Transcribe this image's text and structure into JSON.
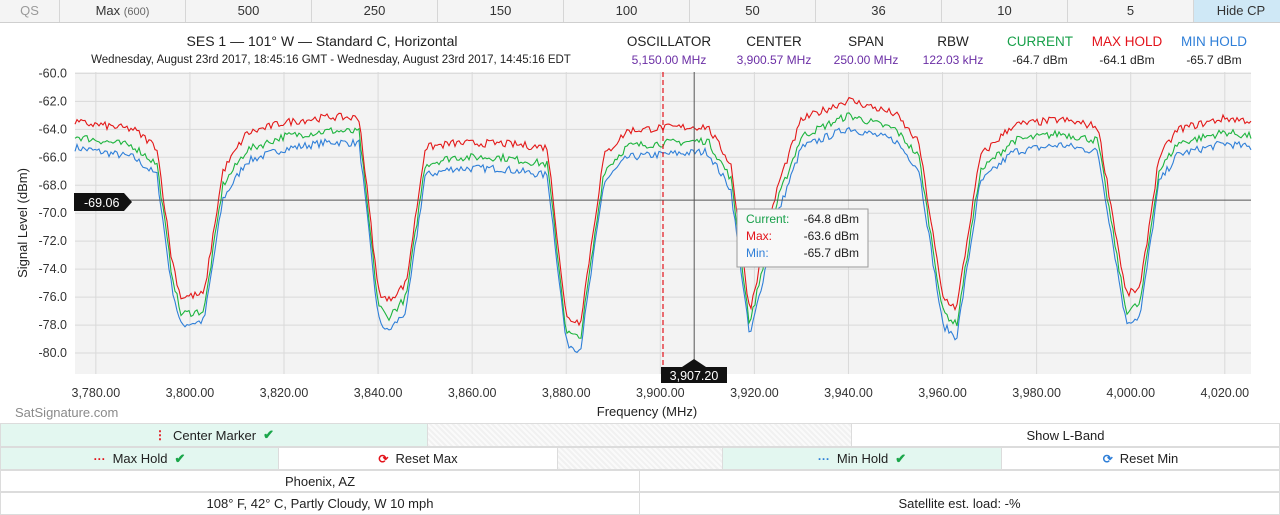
{
  "toolbar": {
    "qs": "QS",
    "max_label": "Max",
    "max_value": "(600)",
    "rates": [
      "500",
      "250",
      "150",
      "100",
      "50",
      "36",
      "10",
      "5"
    ],
    "hide_cp": "Hide CP"
  },
  "header": {
    "title": "SES 1 — 101° W — Standard C, Horizontal",
    "subtitle": "Wednesday, August 23rd 2017, 18:45:16 GMT - Wednesday, August 23rd 2017, 14:45:16 EDT",
    "stats": [
      {
        "label": "OSCILLATOR",
        "value": "5,150.00 MHz",
        "label_color": "#222222",
        "value_color": "#6b2ea5"
      },
      {
        "label": "CENTER",
        "value": "3,900.57 MHz",
        "label_color": "#222222",
        "value_color": "#6b2ea5"
      },
      {
        "label": "SPAN",
        "value": "250.00 MHz",
        "label_color": "#222222",
        "value_color": "#6b2ea5"
      },
      {
        "label": "RBW",
        "value": "122.03 kHz",
        "label_color": "#222222",
        "value_color": "#6b2ea5"
      },
      {
        "label": "CURRENT",
        "value": "-64.7 dBm",
        "label_color": "#18a04a",
        "value_color": "#222222"
      },
      {
        "label": "MAX HOLD",
        "value": "-64.1 dBm",
        "label_color": "#e3131b",
        "value_color": "#222222"
      },
      {
        "label": "MIN HOLD",
        "value": "-65.7 dBm",
        "label_color": "#2f7fd8",
        "value_color": "#222222"
      }
    ]
  },
  "chart_data": {
    "type": "line",
    "xlabel": "Frequency (MHz)",
    "ylabel": "Signal Level (dBm)",
    "xlim": [
      3775.57,
      4025.57
    ],
    "ylim": [
      -81.5,
      -59.9
    ],
    "xticks": [
      "3,780.00",
      "3,800.00",
      "3,820.00",
      "3,840.00",
      "3,860.00",
      "3,880.00",
      "3,900.00",
      "3,920.00",
      "3,940.00",
      "3,960.00",
      "3,980.00",
      "4,000.00",
      "4,020.00"
    ],
    "yticks": [
      "-60.0",
      "-62.0",
      "-64.0",
      "-66.0",
      "-68.0",
      "-70.0",
      "-72.0",
      "-74.0",
      "-76.0",
      "-78.0",
      "-80.0"
    ],
    "grid": true,
    "series": [
      {
        "name": "Current",
        "color": "#1db43e",
        "x": [
          3775.6,
          3781,
          3788,
          3793,
          3796,
          3798,
          3803,
          3807,
          3812,
          3820,
          3830,
          3836,
          3840,
          3842,
          3846,
          3850,
          3856,
          3866,
          3876,
          3880,
          3883,
          3888,
          3893,
          3900,
          3910,
          3915,
          3919,
          3925,
          3930,
          3940,
          3950,
          3955,
          3960,
          3963,
          3968,
          3975,
          3985,
          3993,
          3999,
          4002,
          4006,
          4010,
          4020,
          4025.6
        ],
        "y": [
          -64.5,
          -64.8,
          -65.2,
          -66.5,
          -74.0,
          -77.2,
          -77.0,
          -68.0,
          -65.5,
          -64.5,
          -64.1,
          -64.2,
          -76.5,
          -77.5,
          -76.0,
          -66.5,
          -66.0,
          -66.0,
          -66.5,
          -78.5,
          -79.0,
          -67.0,
          -65.2,
          -65.0,
          -64.8,
          -67.5,
          -78.0,
          -69.0,
          -64.5,
          -63.0,
          -64.0,
          -66.0,
          -77.0,
          -78.0,
          -67.0,
          -64.8,
          -64.3,
          -64.8,
          -77.0,
          -76.5,
          -67.0,
          -65.0,
          -64.2,
          -64.5
        ]
      },
      {
        "name": "Max",
        "color": "#e31818",
        "x": [
          3775.6,
          3781,
          3788,
          3793,
          3796,
          3798,
          3803,
          3807,
          3812,
          3820,
          3830,
          3836,
          3840,
          3842,
          3846,
          3850,
          3856,
          3866,
          3876,
          3880,
          3883,
          3888,
          3893,
          3900,
          3910,
          3915,
          3919,
          3925,
          3930,
          3940,
          3950,
          3955,
          3960,
          3963,
          3968,
          3975,
          3985,
          3993,
          3999,
          4002,
          4006,
          4010,
          4020,
          4025.6
        ],
        "y": [
          -63.5,
          -63.7,
          -64.0,
          -65.3,
          -73.0,
          -76.0,
          -75.8,
          -67.0,
          -64.3,
          -63.5,
          -63.1,
          -63.2,
          -75.5,
          -76.3,
          -75.0,
          -65.3,
          -65.0,
          -65.0,
          -65.3,
          -77.5,
          -77.8,
          -65.9,
          -64.1,
          -63.9,
          -63.8,
          -66.5,
          -77.0,
          -68.0,
          -63.3,
          -61.9,
          -62.9,
          -65.0,
          -76.0,
          -76.8,
          -65.9,
          -63.7,
          -63.3,
          -63.8,
          -75.8,
          -75.4,
          -66.0,
          -64.0,
          -63.2,
          -63.4
        ]
      },
      {
        "name": "Min",
        "color": "#2f7fd8",
        "x": [
          3775.6,
          3781,
          3788,
          3793,
          3796,
          3798,
          3803,
          3807,
          3812,
          3820,
          3830,
          3836,
          3840,
          3842,
          3846,
          3850,
          3856,
          3866,
          3876,
          3880,
          3883,
          3888,
          3893,
          3900,
          3910,
          3915,
          3919,
          3925,
          3930,
          3940,
          3950,
          3955,
          3960,
          3963,
          3968,
          3975,
          3985,
          3993,
          3999,
          4002,
          4006,
          4010,
          4020,
          4025.6
        ],
        "y": [
          -65.3,
          -65.6,
          -66.0,
          -67.3,
          -75.0,
          -78.0,
          -77.7,
          -69.0,
          -66.3,
          -65.4,
          -64.9,
          -65.0,
          -77.5,
          -78.5,
          -77.0,
          -67.3,
          -66.8,
          -66.8,
          -67.3,
          -79.3,
          -79.8,
          -67.8,
          -66.0,
          -65.8,
          -65.6,
          -68.3,
          -78.9,
          -70.0,
          -65.3,
          -63.9,
          -64.8,
          -66.9,
          -78.0,
          -78.9,
          -67.8,
          -65.6,
          -65.1,
          -65.6,
          -77.8,
          -77.4,
          -67.8,
          -65.8,
          -65.0,
          -65.3
        ]
      }
    ],
    "center_marker_x": 3900.57,
    "cursor_x": 3907.2,
    "cursor_x_label": "3,907.20",
    "cursor_y": -69.06,
    "cursor_y_label": "-69.06",
    "tooltip": [
      {
        "label": "Current:",
        "value": "-64.8 dBm",
        "color": "#18a04a"
      },
      {
        "label": "Max:",
        "value": "-63.6 dBm",
        "color": "#e3131b"
      },
      {
        "label": "Min:",
        "value": "-65.7 dBm",
        "color": "#2f7fd8"
      }
    ],
    "watermark": "SatSignature.com"
  },
  "controls": {
    "center_marker": "Center Marker",
    "show_lband": "Show L-Band",
    "max_hold": "Max Hold",
    "reset_max": "Reset Max",
    "min_hold": "Min Hold",
    "reset_min": "Reset Min",
    "location": "Phoenix, AZ",
    "weather": "108° F, 42° C, Partly Cloudy, W 10 mph",
    "load": "Satellite est. load: -%"
  }
}
